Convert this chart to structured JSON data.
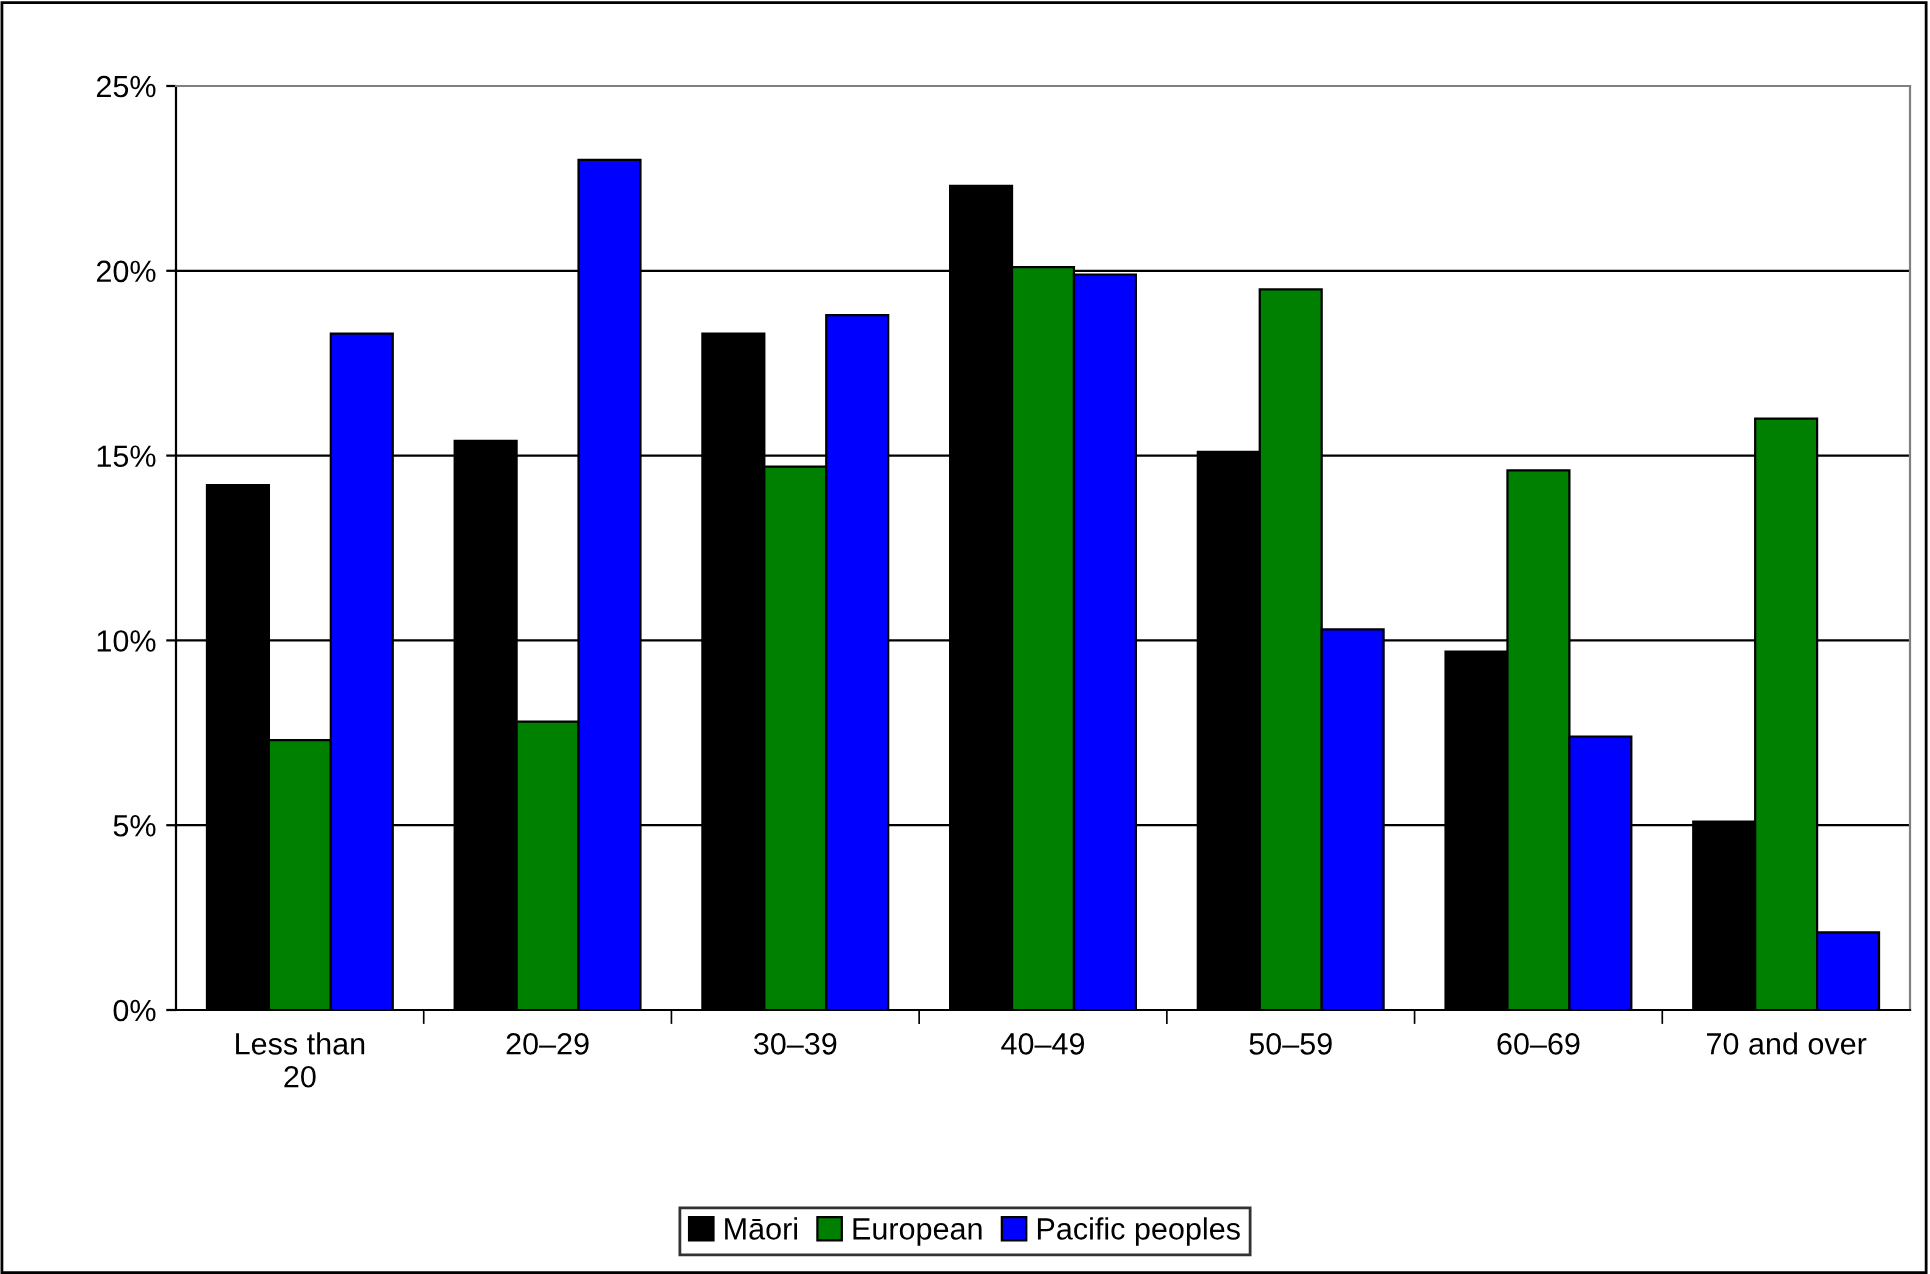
{
  "chart_data": {
    "type": "bar",
    "categories": [
      "Less than\n20",
      "20–29",
      "30–39",
      "40–49",
      "50–59",
      "60–69",
      "70 and over"
    ],
    "series": [
      {
        "name": "Māori",
        "color": "#000000",
        "values": [
          14.2,
          15.4,
          18.3,
          22.3,
          15.1,
          9.7,
          5.1
        ]
      },
      {
        "name": "European",
        "color": "#008000",
        "values": [
          7.3,
          7.8,
          14.7,
          20.1,
          19.5,
          14.6,
          16.0
        ]
      },
      {
        "name": "Pacific peoples",
        "color": "#0000ff",
        "values": [
          18.3,
          23.0,
          18.8,
          19.9,
          10.3,
          7.4,
          2.1
        ]
      }
    ],
    "ylim": [
      0,
      25
    ],
    "yticks": [
      {
        "value": 0,
        "label": "0%"
      },
      {
        "value": 5,
        "label": "5%"
      },
      {
        "value": 10,
        "label": "10%"
      },
      {
        "value": 15,
        "label": "15%"
      },
      {
        "value": 20,
        "label": "20%"
      },
      {
        "value": 25,
        "label": "25%"
      }
    ],
    "grid": "y",
    "legend": "bottom"
  }
}
